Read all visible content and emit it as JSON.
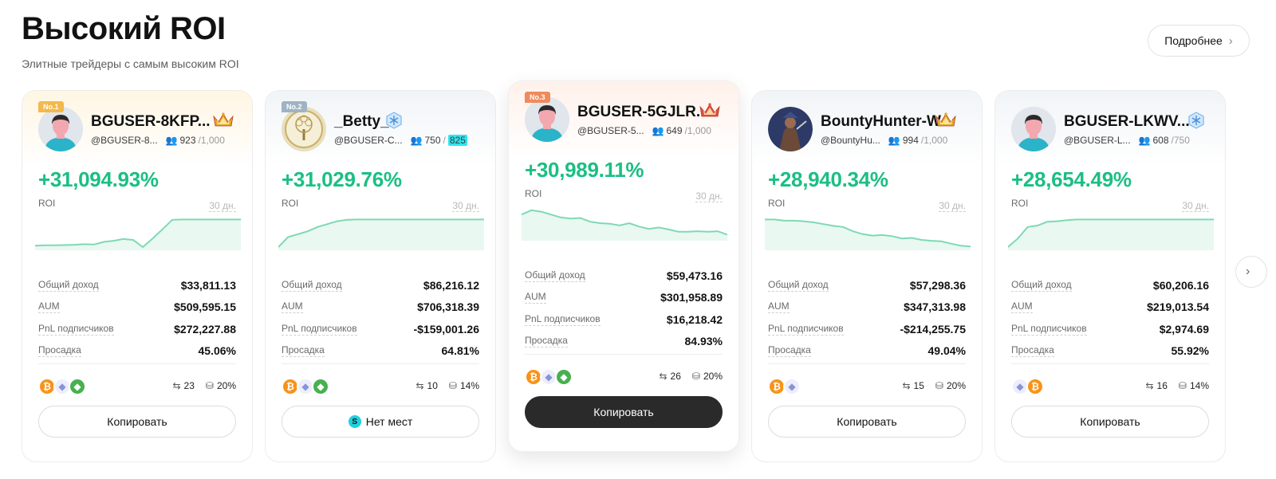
{
  "header": {
    "title": "Высокий ROI",
    "subtitle": "Элитные трейдеры с самым высоким ROI",
    "more_label": "Подробнее"
  },
  "labels": {
    "roi": "ROI",
    "period": "30 дн.",
    "total_income": "Общий доход",
    "aum": "AUM",
    "pnl_subscribers": "PnL подписчиков",
    "drawdown": "Просадка"
  },
  "colors": {
    "roi_green": "#1bbf83",
    "chart_fill": "#e9f8f1",
    "chart_line": "#7ed9b5",
    "dark_button": "#2a2a2a"
  },
  "traders": [
    {
      "rank": "No.1",
      "name": "BGUSER-8KFP...",
      "handle": "@BGUSER-8...",
      "followers": "923",
      "followers_cap": "/1,000",
      "followers_highlight": "",
      "badge": "crown-gold",
      "roi": "+31,094.93%",
      "total_income": "$33,811.13",
      "aum": "$509,595.15",
      "pnl": "$272,227.88",
      "drawdown": "45.06%",
      "coins": [
        "btc",
        "eth",
        "etc"
      ],
      "trades": "23",
      "share": "20%",
      "button": "Копировать",
      "button_style": "outline",
      "chart_roi_series": [
        0.05,
        0.06,
        0.06,
        0.07,
        0.08,
        0.1,
        0.09,
        0.18,
        0.22,
        0.28,
        0.25,
        0.0,
        0.3,
        0.62,
        0.95,
        0.96,
        0.96,
        0.96,
        0.96,
        0.96,
        0.96,
        0.96
      ]
    },
    {
      "rank": "No.2",
      "name": "_Betty_",
      "handle": "@BGUSER-C...",
      "followers": "750",
      "followers_cap": "/",
      "followers_highlight": "825",
      "badge": "snowflake",
      "roi": "+31,029.76%",
      "total_income": "$86,216.12",
      "aum": "$706,318.39",
      "pnl": "-$159,001.26",
      "drawdown": "64.81%",
      "coins": [
        "btc",
        "eth",
        "etc"
      ],
      "trades": "10",
      "share": "14%",
      "button": "Нет мест",
      "button_style": "noplace",
      "chart_roi_series": [
        0.0,
        0.35,
        0.45,
        0.55,
        0.7,
        0.8,
        0.9,
        0.95,
        0.96,
        0.96,
        0.96,
        0.96,
        0.96,
        0.96,
        0.96,
        0.96,
        0.96,
        0.96,
        0.96,
        0.96,
        0.96,
        0.96
      ]
    },
    {
      "rank": "No.3",
      "name": "BGUSER-5GJLR...",
      "handle": "@BGUSER-5...",
      "followers": "649",
      "followers_cap": "/1,000",
      "followers_highlight": "",
      "badge": "crown-red",
      "roi": "+30,989.11%",
      "total_income": "$59,473.16",
      "aum": "$301,958.89",
      "pnl": "$16,218.42",
      "drawdown": "84.93%",
      "coins": [
        "btc",
        "eth",
        "etc"
      ],
      "trades": "26",
      "share": "20%",
      "button": "Копировать",
      "button_style": "dark",
      "chart_roi_series": [
        0.8,
        0.95,
        0.9,
        0.8,
        0.7,
        0.66,
        0.68,
        0.55,
        0.5,
        0.48,
        0.42,
        0.5,
        0.38,
        0.3,
        0.35,
        0.28,
        0.2,
        0.2,
        0.22,
        0.2,
        0.22,
        0.1
      ]
    },
    {
      "rank": "",
      "name": "BountyHunter-W",
      "handle": "@BountyHu...",
      "followers": "994",
      "followers_cap": "/1,000",
      "followers_highlight": "",
      "badge": "crown-gold",
      "roi": "+28,940.34%",
      "total_income": "$57,298.36",
      "aum": "$347,313.98",
      "pnl": "-$214,255.75",
      "drawdown": "49.04%",
      "coins": [
        "btc",
        "eth"
      ],
      "trades": "15",
      "share": "20%",
      "button": "Копировать",
      "button_style": "outline",
      "chart_roi_series": [
        0.96,
        0.96,
        0.92,
        0.92,
        0.9,
        0.86,
        0.8,
        0.74,
        0.7,
        0.55,
        0.45,
        0.4,
        0.42,
        0.38,
        0.3,
        0.32,
        0.25,
        0.22,
        0.2,
        0.12,
        0.05,
        0.02
      ]
    },
    {
      "rank": "",
      "name": "BGUSER-LKWV...",
      "handle": "@BGUSER-L...",
      "followers": "608",
      "followers_cap": "/750",
      "followers_highlight": "",
      "badge": "snowflake",
      "roi": "+28,654.49%",
      "total_income": "$60,206.16",
      "aum": "$219,013.54",
      "pnl": "$2,974.69",
      "drawdown": "55.92%",
      "coins": [
        "eth",
        "btc"
      ],
      "trades": "16",
      "share": "14%",
      "button": "Копировать",
      "button_style": "outline",
      "chart_roi_series": [
        0.0,
        0.3,
        0.7,
        0.75,
        0.88,
        0.9,
        0.94,
        0.96,
        0.96,
        0.96,
        0.96,
        0.96,
        0.96,
        0.96,
        0.96,
        0.96,
        0.96,
        0.96,
        0.96,
        0.96,
        0.96,
        0.96
      ]
    }
  ]
}
